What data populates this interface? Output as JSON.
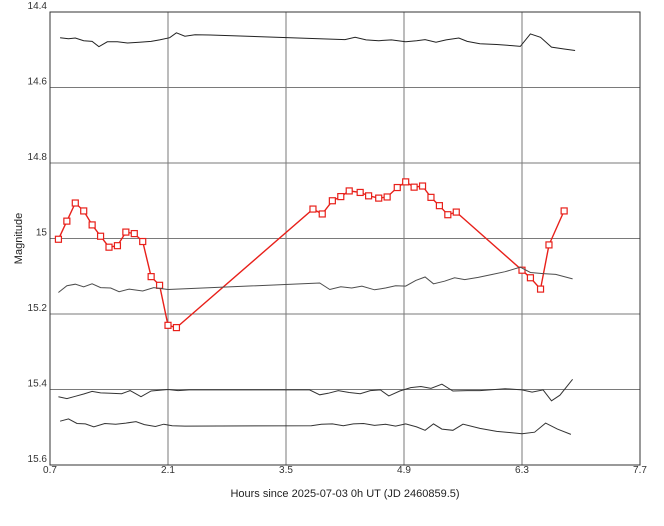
{
  "chart_data": {
    "type": "line",
    "title": "",
    "xlabel": "Hours since 2025-07-03 0h UT (JD 2460859.5)",
    "ylabel": "Magnitude",
    "xlim": [
      0.7,
      7.7
    ],
    "ylim": [
      14.4,
      15.6
    ],
    "y_reversed": true,
    "grid": true,
    "x_ticks": [
      0.7,
      2.1,
      3.5,
      4.9,
      6.3,
      7.7
    ],
    "x_tick_labels": [
      "0.7",
      "2.1",
      "3.5",
      "4.9",
      "6.3",
      "7.7"
    ],
    "y_ticks": [
      14.4,
      14.6,
      14.8,
      15.0,
      15.2,
      15.4,
      15.6
    ],
    "y_tick_labels": [
      "14.4",
      "14.6",
      "14.8",
      "15",
      "15.2",
      "15.4",
      "15.6"
    ],
    "series": [
      {
        "color": "#222222",
        "marker": "none",
        "points": [
          [
            0.82,
            14.468
          ],
          [
            0.92,
            14.471
          ],
          [
            1.0,
            14.469
          ],
          [
            1.1,
            14.476
          ],
          [
            1.2,
            14.478
          ],
          [
            1.28,
            14.492
          ],
          [
            1.38,
            14.479
          ],
          [
            1.5,
            14.479
          ],
          [
            1.62,
            14.482
          ],
          [
            1.76,
            14.48
          ],
          [
            1.9,
            14.478
          ],
          [
            2.0,
            14.474
          ],
          [
            2.12,
            14.468
          ],
          [
            2.2,
            14.455
          ],
          [
            2.3,
            14.464
          ],
          [
            2.42,
            14.46
          ],
          [
            2.6,
            14.461
          ],
          [
            4.2,
            14.473
          ],
          [
            4.32,
            14.467
          ],
          [
            4.45,
            14.474
          ],
          [
            4.6,
            14.476
          ],
          [
            4.75,
            14.474
          ],
          [
            4.92,
            14.479
          ],
          [
            5.05,
            14.476
          ],
          [
            5.15,
            14.473
          ],
          [
            5.28,
            14.48
          ],
          [
            5.4,
            14.474
          ],
          [
            5.55,
            14.469
          ],
          [
            5.65,
            14.478
          ],
          [
            5.8,
            14.484
          ],
          [
            6.0,
            14.486
          ],
          [
            6.18,
            14.489
          ],
          [
            6.28,
            14.491
          ],
          [
            6.4,
            14.458
          ],
          [
            6.52,
            14.467
          ],
          [
            6.65,
            14.493
          ],
          [
            6.8,
            14.498
          ],
          [
            6.93,
            14.502
          ]
        ]
      },
      {
        "color": "#e8201a",
        "marker": "square",
        "points": [
          [
            0.8,
            15.002
          ],
          [
            0.9,
            14.954
          ],
          [
            1.0,
            14.906
          ],
          [
            1.1,
            14.927
          ],
          [
            1.2,
            14.964
          ],
          [
            1.3,
            14.994
          ],
          [
            1.4,
            15.023
          ],
          [
            1.5,
            15.019
          ],
          [
            1.6,
            14.983
          ],
          [
            1.7,
            14.987
          ],
          [
            1.8,
            15.008
          ],
          [
            1.9,
            15.101
          ],
          [
            2.0,
            15.124
          ],
          [
            2.1,
            15.23
          ],
          [
            2.2,
            15.236
          ],
          [
            3.82,
            14.922
          ],
          [
            3.93,
            14.935
          ],
          [
            4.05,
            14.9
          ],
          [
            4.15,
            14.889
          ],
          [
            4.25,
            14.874
          ],
          [
            4.38,
            14.878
          ],
          [
            4.48,
            14.887
          ],
          [
            4.6,
            14.893
          ],
          [
            4.7,
            14.89
          ],
          [
            4.82,
            14.865
          ],
          [
            4.92,
            14.85
          ],
          [
            5.02,
            14.864
          ],
          [
            5.12,
            14.861
          ],
          [
            5.22,
            14.891
          ],
          [
            5.32,
            14.913
          ],
          [
            5.42,
            14.937
          ],
          [
            5.52,
            14.93
          ],
          [
            6.3,
            15.084
          ],
          [
            6.4,
            15.104
          ],
          [
            6.52,
            15.134
          ],
          [
            6.62,
            15.017
          ],
          [
            6.8,
            14.927
          ]
        ]
      },
      {
        "color": "#4d4d4d",
        "marker": "none",
        "points": [
          [
            0.8,
            15.143
          ],
          [
            0.9,
            15.125
          ],
          [
            1.0,
            15.121
          ],
          [
            1.1,
            15.128
          ],
          [
            1.2,
            15.12
          ],
          [
            1.3,
            15.13
          ],
          [
            1.42,
            15.131
          ],
          [
            1.52,
            15.141
          ],
          [
            1.64,
            15.134
          ],
          [
            1.8,
            15.139
          ],
          [
            1.93,
            15.13
          ],
          [
            2.1,
            15.135
          ],
          [
            3.9,
            15.118
          ],
          [
            4.02,
            15.135
          ],
          [
            4.15,
            15.128
          ],
          [
            4.28,
            15.131
          ],
          [
            4.4,
            15.126
          ],
          [
            4.55,
            15.136
          ],
          [
            4.68,
            15.131
          ],
          [
            4.8,
            15.125
          ],
          [
            4.92,
            15.126
          ],
          [
            5.04,
            15.111
          ],
          [
            5.15,
            15.102
          ],
          [
            5.25,
            15.12
          ],
          [
            5.38,
            15.113
          ],
          [
            5.5,
            15.104
          ],
          [
            5.62,
            15.109
          ],
          [
            5.78,
            15.103
          ],
          [
            5.95,
            15.095
          ],
          [
            6.1,
            15.088
          ],
          [
            6.28,
            15.076
          ],
          [
            6.4,
            15.09
          ],
          [
            6.55,
            15.093
          ],
          [
            6.7,
            15.095
          ],
          [
            6.9,
            15.107
          ]
        ]
      },
      {
        "color": "#333333",
        "marker": "none",
        "points": [
          [
            0.8,
            15.419
          ],
          [
            0.9,
            15.424
          ],
          [
            1.0,
            15.418
          ],
          [
            1.1,
            15.412
          ],
          [
            1.2,
            15.405
          ],
          [
            1.3,
            15.409
          ],
          [
            1.42,
            15.41
          ],
          [
            1.55,
            15.411
          ],
          [
            1.65,
            15.403
          ],
          [
            1.78,
            15.419
          ],
          [
            1.9,
            15.404
          ],
          [
            2.0,
            15.402
          ],
          [
            2.1,
            15.4
          ],
          [
            2.22,
            15.403
          ],
          [
            2.35,
            15.401
          ],
          [
            3.78,
            15.401
          ],
          [
            3.9,
            15.414
          ],
          [
            4.0,
            15.41
          ],
          [
            4.12,
            15.403
          ],
          [
            4.25,
            15.408
          ],
          [
            4.38,
            15.411
          ],
          [
            4.5,
            15.403
          ],
          [
            4.62,
            15.401
          ],
          [
            4.72,
            15.417
          ],
          [
            4.85,
            15.404
          ],
          [
            4.98,
            15.395
          ],
          [
            5.1,
            15.392
          ],
          [
            5.22,
            15.397
          ],
          [
            5.35,
            15.386
          ],
          [
            5.48,
            15.404
          ],
          [
            5.65,
            15.403
          ],
          [
            5.8,
            15.403
          ],
          [
            6.1,
            15.398
          ],
          [
            6.3,
            15.401
          ],
          [
            6.42,
            15.407
          ],
          [
            6.55,
            15.401
          ],
          [
            6.65,
            15.43
          ],
          [
            6.75,
            15.415
          ],
          [
            6.9,
            15.373
          ]
        ]
      },
      {
        "color": "#333333",
        "marker": "none",
        "points": [
          [
            0.82,
            15.484
          ],
          [
            0.92,
            15.478
          ],
          [
            1.02,
            15.49
          ],
          [
            1.12,
            15.491
          ],
          [
            1.22,
            15.499
          ],
          [
            1.35,
            15.49
          ],
          [
            1.48,
            15.492
          ],
          [
            1.6,
            15.489
          ],
          [
            1.72,
            15.485
          ],
          [
            1.82,
            15.493
          ],
          [
            1.95,
            15.498
          ],
          [
            2.05,
            15.492
          ],
          [
            2.15,
            15.496
          ],
          [
            2.3,
            15.497
          ],
          [
            3.8,
            15.496
          ],
          [
            3.92,
            15.492
          ],
          [
            4.05,
            15.491
          ],
          [
            4.18,
            15.496
          ],
          [
            4.3,
            15.491
          ],
          [
            4.42,
            15.49
          ],
          [
            4.55,
            15.495
          ],
          [
            4.68,
            15.492
          ],
          [
            4.8,
            15.497
          ],
          [
            4.92,
            15.491
          ],
          [
            5.05,
            15.499
          ],
          [
            5.15,
            15.508
          ],
          [
            5.25,
            15.491
          ],
          [
            5.35,
            15.505
          ],
          [
            5.48,
            15.508
          ],
          [
            5.6,
            15.492
          ],
          [
            5.8,
            15.503
          ],
          [
            6.0,
            15.511
          ],
          [
            6.3,
            15.517
          ],
          [
            6.45,
            15.513
          ],
          [
            6.58,
            15.489
          ],
          [
            6.72,
            15.505
          ],
          [
            6.88,
            15.519
          ]
        ]
      }
    ]
  }
}
